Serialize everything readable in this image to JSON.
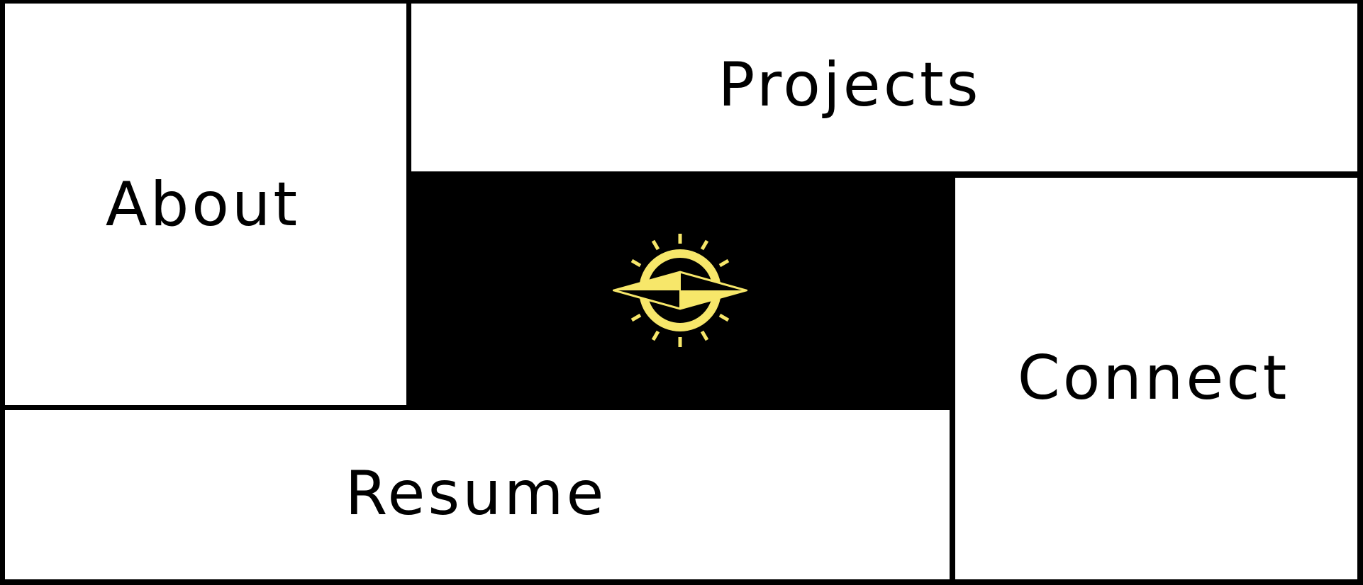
{
  "tiles": {
    "about": "About",
    "projects": "Projects",
    "connect": "Connect",
    "resume": "Resume"
  },
  "logo": {
    "icon": "sun-compass-logo",
    "color": "#f7e76a",
    "background": "#000000"
  },
  "colors": {
    "tile_background": "#ffffff",
    "text": "#000000",
    "border": "#000000"
  }
}
